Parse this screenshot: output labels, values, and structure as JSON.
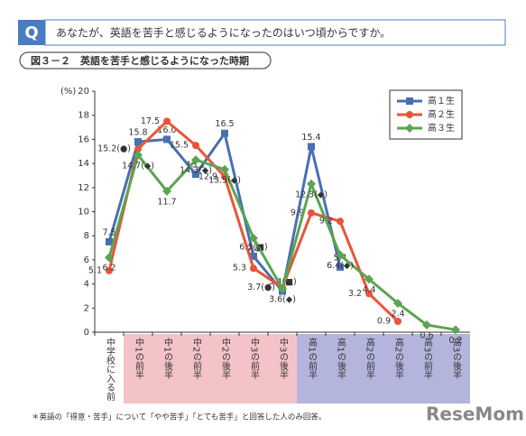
{
  "question": {
    "badge": "Q",
    "text": "あなたが、英語を苦手と感じるようになったのはいつ頃からですか。"
  },
  "figure_label": "図３－２　英語を苦手と感じるようになった時期",
  "footnote": "＊英語の「得意・苦手」について「やや苦手」「とても苦手」と回答した人のみ回答。",
  "logo": "ReseMom",
  "chart_data": {
    "type": "line",
    "y_label": "(%)",
    "categories": [
      "中学校に入る前",
      "中1の前半",
      "中1の後半",
      "中2の前半",
      "中2の後半",
      "中3の前半",
      "中3の後半",
      "高1の前半",
      "高1の後半",
      "高2の前半",
      "高2の後半",
      "高3の前半",
      "高3の後半"
    ],
    "series": [
      {
        "name": "高１生",
        "color": "#4a6fb0",
        "marker": "square",
        "values": [
          7.5,
          15.8,
          16.0,
          13.1,
          16.5,
          6.3,
          3.4,
          15.4,
          5.4,
          null,
          null,
          null,
          null
        ],
        "value_labels": [
          "7.5",
          "15.8",
          "16.0",
          "13.1",
          "16.5",
          "6.3(■)",
          "3.4(■)",
          "15.4",
          "5.4",
          null,
          null,
          null,
          null
        ]
      },
      {
        "name": "高２生",
        "color": "#e8553a",
        "marker": "circle",
        "values": [
          5.1,
          15.2,
          17.5,
          15.5,
          12.9,
          5.3,
          3.7,
          9.9,
          9.2,
          3.2,
          0.9,
          null,
          null
        ],
        "value_labels": [
          "5.1",
          "15.2(●)",
          "17.5",
          "15.5",
          "12.9",
          "5.3",
          "3.7(●)",
          "9.9",
          "9.2",
          "3.2",
          "0.9",
          null,
          null
        ]
      },
      {
        "name": "高３生",
        "color": "#5aa550",
        "marker": "diamond",
        "values": [
          6.2,
          14.7,
          11.7,
          14.3,
          13.5,
          7.8,
          3.6,
          12.3,
          6.4,
          4.4,
          2.4,
          0.6,
          0.2
        ],
        "value_labels": [
          "6.2",
          "14.7(◆)",
          "11.7",
          "14.3(◆)",
          "13.5(◆)",
          "7.8",
          "3.6(◆)",
          "12.3(◆)",
          "6.4(◆)",
          "4.4",
          "2.4",
          "0.6",
          "0.2"
        ]
      }
    ],
    "ylim": [
      0,
      20
    ],
    "yticks": [
      0,
      2,
      4,
      6,
      8,
      10,
      12,
      14,
      16,
      18,
      20
    ],
    "legend": "upper right"
  }
}
